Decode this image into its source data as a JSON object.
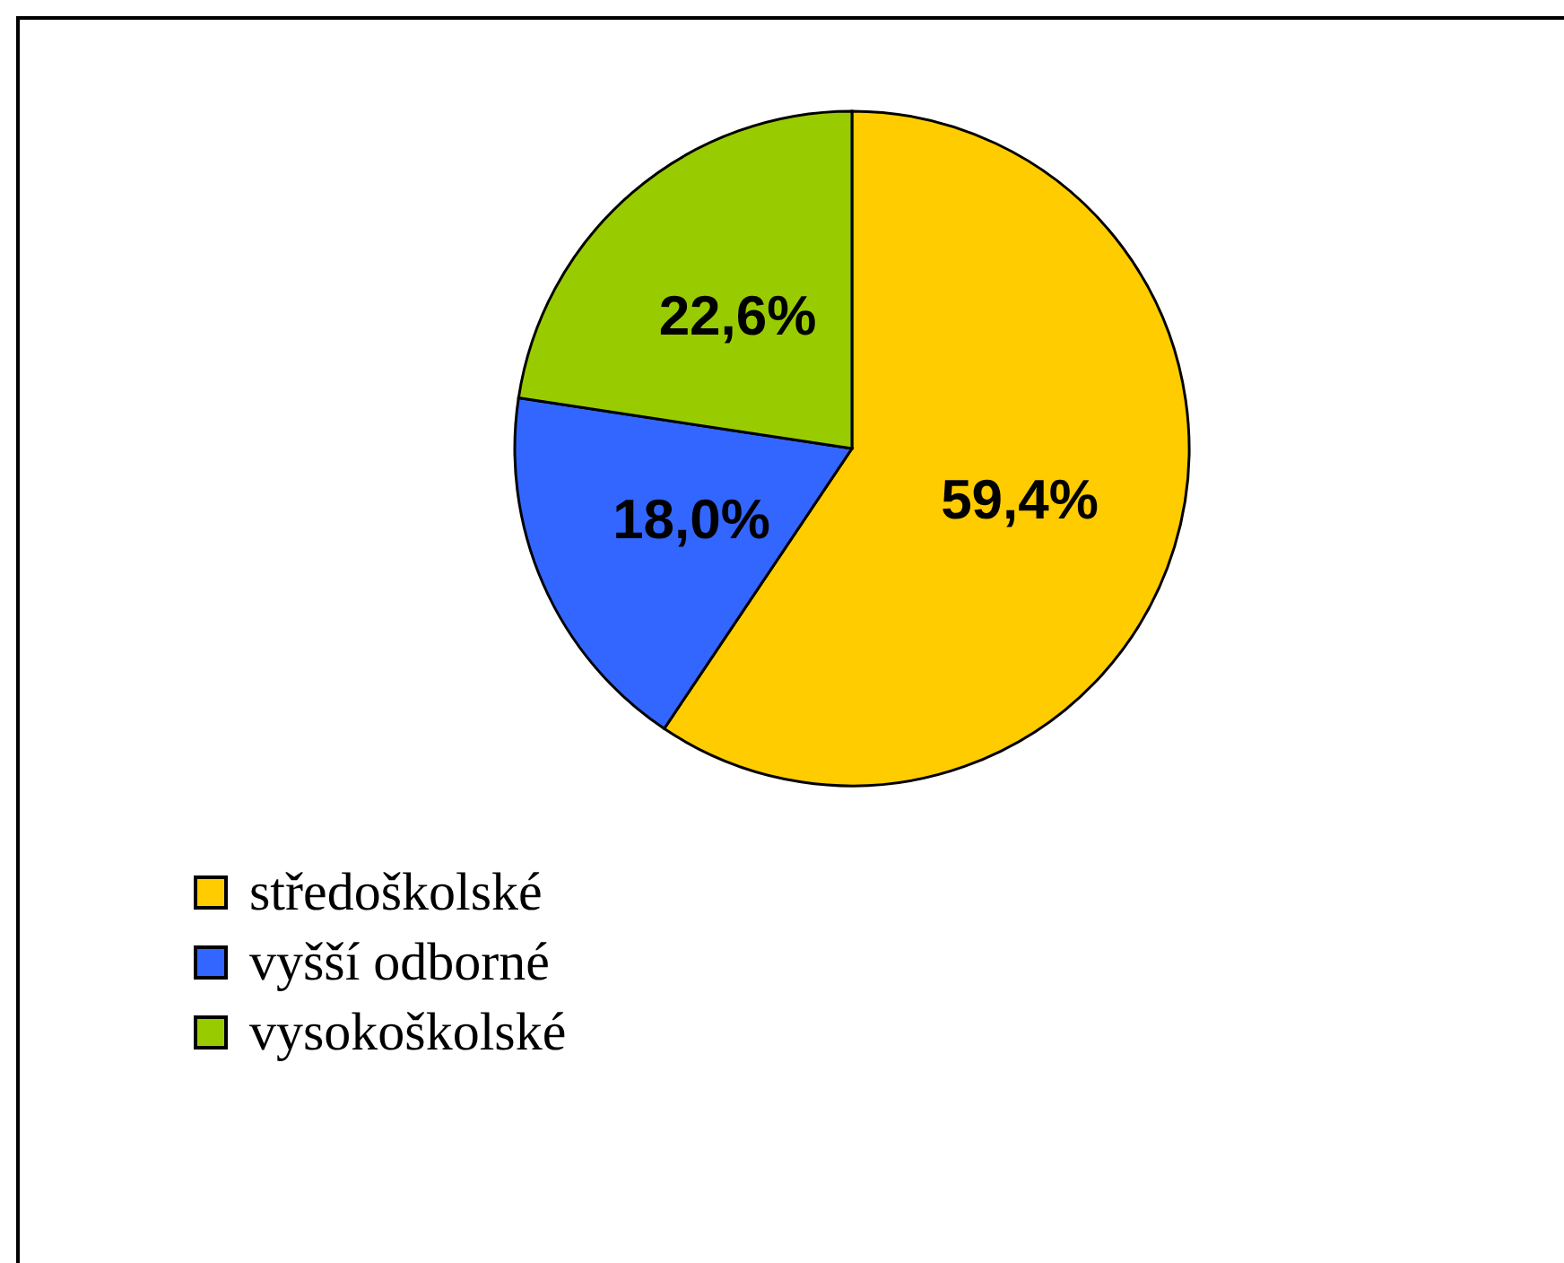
{
  "chart_data": {
    "type": "pie",
    "categories": [
      "středoškolské",
      "vyšší odborné",
      "vysokoškolské"
    ],
    "values": [
      59.4,
      18.0,
      22.6
    ],
    "colors": [
      "#ffcc00",
      "#3366ff",
      "#99cc00"
    ],
    "value_labels": [
      "59,4%",
      "18,0%",
      "22,6%"
    ],
    "legend": "bottom left"
  }
}
